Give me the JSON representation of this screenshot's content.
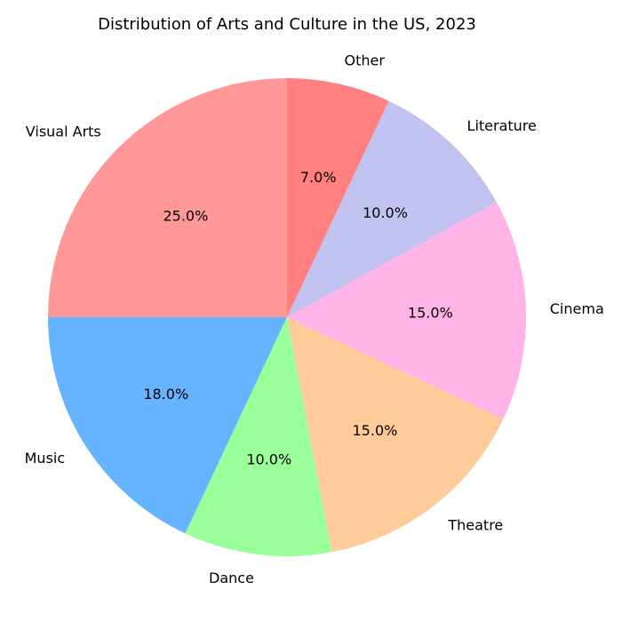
{
  "chart_data": {
    "type": "pie",
    "title": "Distribution of Arts and Culture in the US, 2023",
    "categories": [
      "Visual Arts",
      "Music",
      "Dance",
      "Theatre",
      "Cinema",
      "Literature",
      "Other"
    ],
    "values": [
      25,
      18,
      10,
      15,
      15,
      10,
      7
    ],
    "percent_labels": [
      "25.0%",
      "18.0%",
      "10.0%",
      "15.0%",
      "15.0%",
      "10.0%",
      "7.0%"
    ],
    "colors": [
      "#ff9999",
      "#66b3ff",
      "#99ff99",
      "#ffcc99",
      "#ffb3e6",
      "#c2c2f0",
      "#ff8080"
    ],
    "start_angle_deg": 90,
    "direction": "counterclockwise"
  }
}
